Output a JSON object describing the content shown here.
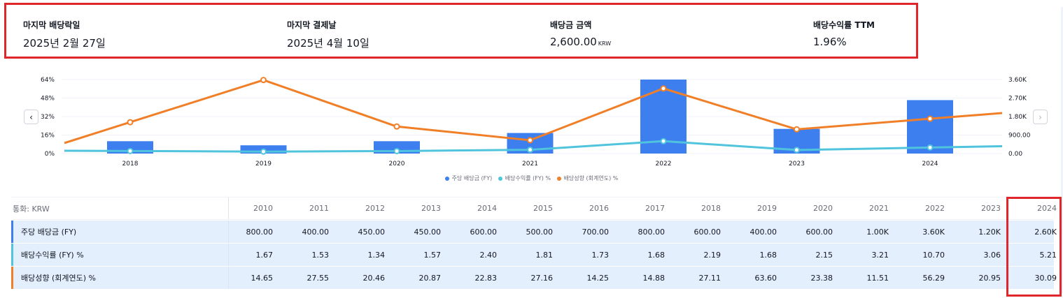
{
  "summary": {
    "ex_date": {
      "label": "마지막 배당락일",
      "value": "2025년 2월 27일"
    },
    "pay_date": {
      "label": "마지막 결제날",
      "value": "2025년 4월 10일"
    },
    "amount": {
      "label": "배당금 금액",
      "value": "2,600.00",
      "unit": "KRW"
    },
    "yield": {
      "label": "배당수익률 TTM",
      "value": "1.96%"
    }
  },
  "colors": {
    "dps": "#3e7ff0",
    "yield": "#4fc4dc",
    "payout": "#f07f28",
    "highlight": "#e0262b"
  },
  "chart_data": {
    "type": "bar",
    "categories": [
      "2018",
      "2019",
      "2020",
      "2021",
      "2022",
      "2023",
      "2024"
    ],
    "left_axis": {
      "ticks": [
        "0%",
        "16%",
        "32%",
        "48%",
        "64%"
      ],
      "min": 0,
      "max": 64
    },
    "right_axis": {
      "ticks": [
        "0.00",
        "900.00",
        "1.80K",
        "2.70K",
        "3.60K"
      ],
      "min": 0,
      "max": 3600
    },
    "series": [
      {
        "name": "주당 배당금 (FY)",
        "kind": "bar",
        "axis": "right",
        "values": [
          600,
          400,
          600,
          1000,
          3600,
          1200,
          2600
        ]
      },
      {
        "name": "배당수익률 (FY) %",
        "kind": "line",
        "axis": "left",
        "values": [
          2.19,
          1.68,
          2.15,
          3.21,
          10.7,
          3.06,
          5.21
        ]
      },
      {
        "name": "배당성향 (회계연도) %",
        "kind": "line",
        "axis": "left",
        "values": [
          27.11,
          63.6,
          23.38,
          11.51,
          56.29,
          20.95,
          30.09
        ]
      }
    ],
    "legend_position": "bottom-center",
    "grid": true
  },
  "nav": {
    "prev": "‹",
    "next": "›"
  },
  "table": {
    "currency_label": "통화: KRW",
    "years": [
      "2010",
      "2011",
      "2012",
      "2013",
      "2014",
      "2015",
      "2016",
      "2017",
      "2018",
      "2019",
      "2020",
      "2021",
      "2022",
      "2023",
      "2024"
    ],
    "rows": [
      {
        "label": "주당 배당금 (FY)",
        "values": [
          "800.00",
          "400.00",
          "450.00",
          "450.00",
          "600.00",
          "500.00",
          "700.00",
          "800.00",
          "600.00",
          "400.00",
          "600.00",
          "1.00K",
          "3.60K",
          "1.20K",
          "2.60K"
        ]
      },
      {
        "label": "배당수익률 (FY) %",
        "values": [
          "1.67",
          "1.53",
          "1.34",
          "1.57",
          "2.40",
          "1.81",
          "1.73",
          "1.68",
          "2.19",
          "1.68",
          "2.15",
          "3.21",
          "10.70",
          "3.06",
          "5.21"
        ]
      },
      {
        "label": "배당성향 (회계연도) %",
        "values": [
          "14.65",
          "27.55",
          "20.46",
          "20.87",
          "22.83",
          "27.16",
          "14.25",
          "14.88",
          "27.11",
          "63.60",
          "23.38",
          "11.51",
          "56.29",
          "20.95",
          "30.09"
        ]
      }
    ]
  }
}
